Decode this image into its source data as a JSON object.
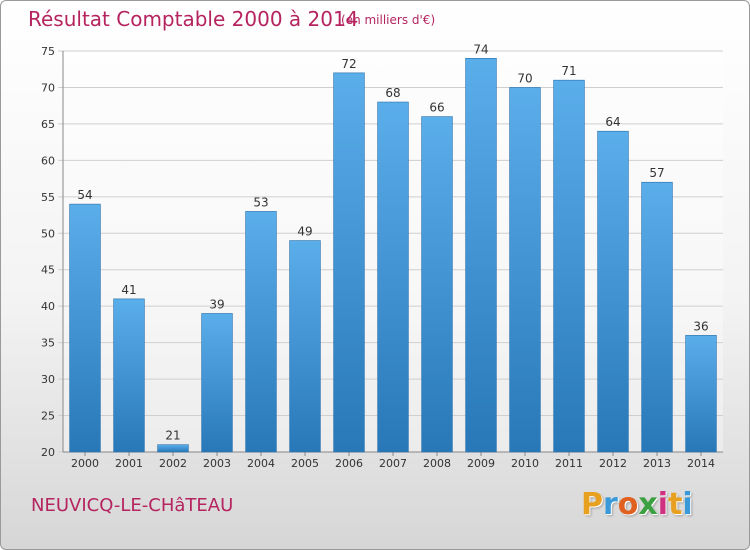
{
  "header": {
    "title": "Résultat Comptable 2000 à 2014",
    "subtitle": "(en milliers d'€)"
  },
  "footer": {
    "commune": "NEUVICQ-LE-CHâTEAU",
    "brand_letters": [
      "P",
      "r",
      "o",
      "x",
      "i",
      "t",
      "i"
    ],
    "brand_colors": [
      "#e8a020",
      "#3a9ad9",
      "#e06020",
      "#3aa040",
      "#d03080",
      "#e8a020",
      "#3a9ad9"
    ]
  },
  "chart_data": {
    "type": "bar",
    "title": "Résultat Comptable 2000 à 2014",
    "subtitle": "(en milliers d'€)",
    "categories": [
      "2000",
      "2001",
      "2002",
      "2003",
      "2004",
      "2005",
      "2006",
      "2007",
      "2008",
      "2009",
      "2010",
      "2011",
      "2012",
      "2013",
      "2014"
    ],
    "values": [
      54,
      41,
      21,
      39,
      53,
      49,
      72,
      68,
      66,
      74,
      70,
      71,
      64,
      57,
      36
    ],
    "ylim": [
      20,
      75
    ],
    "yticks": [
      20,
      25,
      30,
      35,
      40,
      45,
      50,
      55,
      60,
      65,
      70,
      75
    ],
    "grid": true,
    "bar_color_top": "#5aaeea",
    "bar_color_bottom": "#2878b8"
  }
}
